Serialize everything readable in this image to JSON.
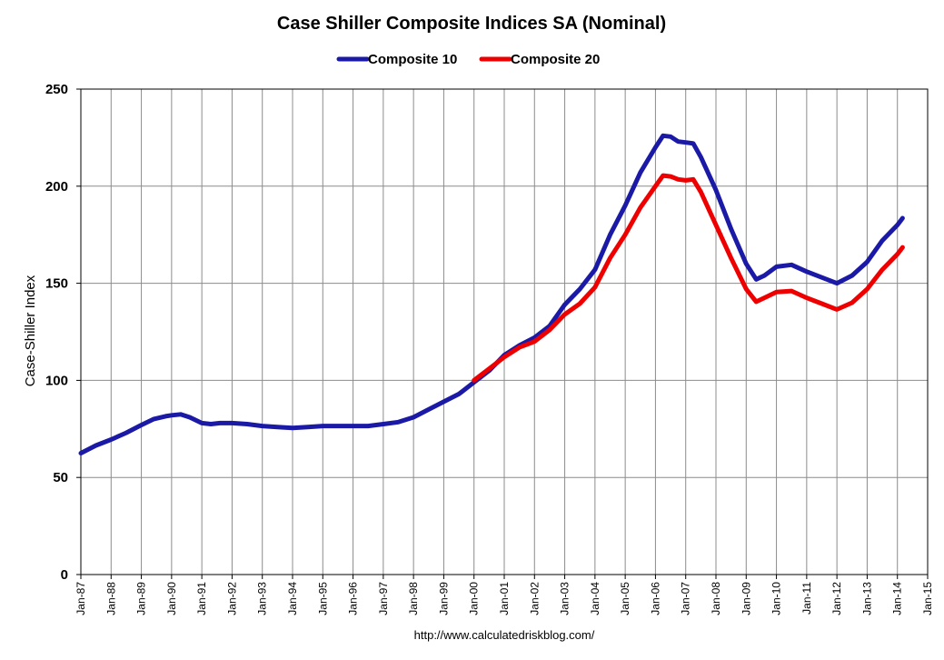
{
  "chart_data": {
    "type": "line",
    "title": "Case Shiller Composite Indices SA (Nominal)",
    "ylabel": "Case-Shiller Index",
    "xlabel": "",
    "source": "http://www.calculatedriskblog.com/",
    "ylim": [
      0,
      250
    ],
    "yticks": [
      0,
      50,
      100,
      150,
      200,
      250
    ],
    "xlim": [
      1987,
      2015
    ],
    "xticks": [
      "Jan-87",
      "Jan-88",
      "Jan-89",
      "Jan-90",
      "Jan-91",
      "Jan-92",
      "Jan-93",
      "Jan-94",
      "Jan-95",
      "Jan-96",
      "Jan-97",
      "Jan-98",
      "Jan-99",
      "Jan-00",
      "Jan-01",
      "Jan-02",
      "Jan-03",
      "Jan-04",
      "Jan-05",
      "Jan-06",
      "Jan-07",
      "Jan-08",
      "Jan-09",
      "Jan-10",
      "Jan-11",
      "Jan-12",
      "Jan-13",
      "Jan-14",
      "Jan-15"
    ],
    "grid": true,
    "legend": "top-center",
    "series": [
      {
        "name": "Composite 10",
        "color": "#1a1aa6",
        "points": [
          [
            1987.0,
            62.5
          ],
          [
            1987.5,
            66.5
          ],
          [
            1988.0,
            69.5
          ],
          [
            1988.5,
            73.0
          ],
          [
            1989.0,
            77.0
          ],
          [
            1989.4,
            80.0
          ],
          [
            1989.8,
            81.5
          ],
          [
            1990.0,
            82.0
          ],
          [
            1990.3,
            82.5
          ],
          [
            1990.6,
            81.0
          ],
          [
            1991.0,
            78.0
          ],
          [
            1991.3,
            77.5
          ],
          [
            1991.6,
            78.0
          ],
          [
            1992.0,
            78.0
          ],
          [
            1992.5,
            77.5
          ],
          [
            1993.0,
            76.5
          ],
          [
            1993.5,
            76.0
          ],
          [
            1994.0,
            75.5
          ],
          [
            1994.5,
            76.0
          ],
          [
            1995.0,
            76.5
          ],
          [
            1995.5,
            76.5
          ],
          [
            1996.0,
            76.5
          ],
          [
            1996.5,
            76.5
          ],
          [
            1997.0,
            77.5
          ],
          [
            1997.5,
            78.5
          ],
          [
            1998.0,
            81.0
          ],
          [
            1998.5,
            85.0
          ],
          [
            1999.0,
            89.0
          ],
          [
            1999.5,
            93.0
          ],
          [
            2000.0,
            99.0
          ],
          [
            2000.5,
            105.0
          ],
          [
            2001.0,
            113.0
          ],
          [
            2001.5,
            118.0
          ],
          [
            2002.0,
            122.0
          ],
          [
            2002.5,
            128.0
          ],
          [
            2003.0,
            139.0
          ],
          [
            2003.5,
            147.0
          ],
          [
            2004.0,
            157.0
          ],
          [
            2004.5,
            175.0
          ],
          [
            2005.0,
            190.0
          ],
          [
            2005.5,
            207.0
          ],
          [
            2006.0,
            220.0
          ],
          [
            2006.25,
            226.0
          ],
          [
            2006.5,
            225.5
          ],
          [
            2006.75,
            223.0
          ],
          [
            2007.0,
            222.5
          ],
          [
            2007.25,
            222.0
          ],
          [
            2007.5,
            215.0
          ],
          [
            2008.0,
            198.0
          ],
          [
            2008.5,
            178.0
          ],
          [
            2009.0,
            160.0
          ],
          [
            2009.33,
            152.0
          ],
          [
            2009.6,
            154.0
          ],
          [
            2010.0,
            158.5
          ],
          [
            2010.5,
            159.5
          ],
          [
            2011.0,
            156.0
          ],
          [
            2011.5,
            153.0
          ],
          [
            2012.0,
            150.0
          ],
          [
            2012.5,
            154.0
          ],
          [
            2013.0,
            161.0
          ],
          [
            2013.5,
            172.0
          ],
          [
            2014.0,
            180.0
          ],
          [
            2014.17,
            183.5
          ]
        ]
      },
      {
        "name": "Composite 20",
        "color": "#ee0000",
        "points": [
          [
            2000.0,
            100.0
          ],
          [
            2000.5,
            106.0
          ],
          [
            2001.0,
            112.0
          ],
          [
            2001.5,
            117.0
          ],
          [
            2002.0,
            120.0
          ],
          [
            2002.5,
            126.0
          ],
          [
            2003.0,
            134.0
          ],
          [
            2003.5,
            139.5
          ],
          [
            2004.0,
            148.0
          ],
          [
            2004.5,
            163.0
          ],
          [
            2005.0,
            175.0
          ],
          [
            2005.5,
            189.0
          ],
          [
            2006.0,
            200.0
          ],
          [
            2006.25,
            205.5
          ],
          [
            2006.5,
            205.0
          ],
          [
            2006.75,
            203.5
          ],
          [
            2007.0,
            203.0
          ],
          [
            2007.25,
            203.5
          ],
          [
            2007.5,
            197.0
          ],
          [
            2008.0,
            180.0
          ],
          [
            2008.5,
            163.0
          ],
          [
            2009.0,
            147.0
          ],
          [
            2009.33,
            140.5
          ],
          [
            2009.6,
            142.5
          ],
          [
            2010.0,
            145.5
          ],
          [
            2010.5,
            146.0
          ],
          [
            2011.0,
            142.5
          ],
          [
            2011.5,
            139.5
          ],
          [
            2012.0,
            136.5
          ],
          [
            2012.5,
            140.0
          ],
          [
            2013.0,
            147.0
          ],
          [
            2013.5,
            157.0
          ],
          [
            2014.0,
            165.0
          ],
          [
            2014.17,
            168.5
          ]
        ]
      }
    ]
  }
}
